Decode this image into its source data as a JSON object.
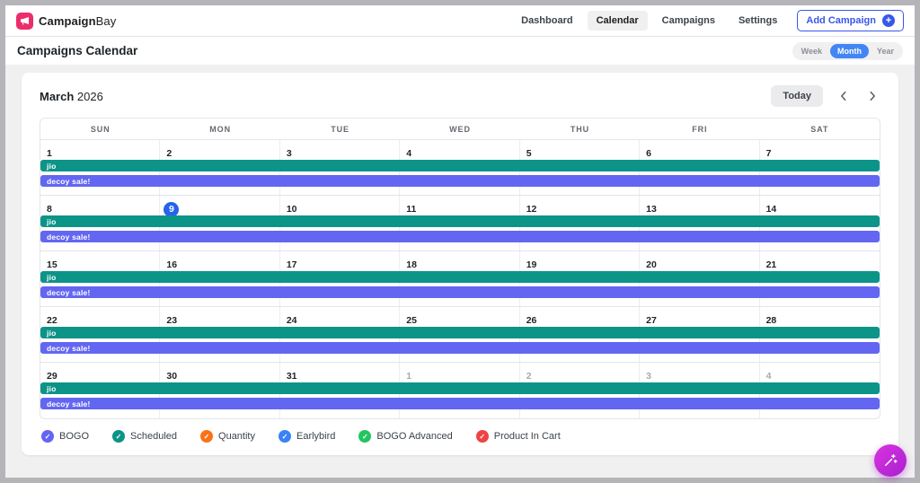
{
  "navbar": {
    "logo_bold": "Campaign",
    "logo_light": "Bay",
    "items": [
      {
        "label": "Dashboard",
        "active": false
      },
      {
        "label": "Calendar",
        "active": true
      },
      {
        "label": "Campaigns",
        "active": false
      },
      {
        "label": "Settings",
        "active": false
      }
    ],
    "add_campaign_label": "Add Campaign"
  },
  "page_header": {
    "title": "Campaigns Calendar",
    "views": [
      {
        "label": "Week",
        "active": false
      },
      {
        "label": "Month",
        "active": true
      },
      {
        "label": "Year",
        "active": false
      }
    ]
  },
  "calendar": {
    "month": "March",
    "year": "2026",
    "today_label": "Today",
    "today_date": "9",
    "day_headers": [
      "SUN",
      "MON",
      "TUE",
      "WED",
      "THU",
      "FRI",
      "SAT"
    ],
    "weeks": [
      {
        "days": [
          {
            "n": "1"
          },
          {
            "n": "2"
          },
          {
            "n": "3"
          },
          {
            "n": "4"
          },
          {
            "n": "5"
          },
          {
            "n": "6"
          },
          {
            "n": "7"
          }
        ],
        "events": [
          {
            "label": "jio",
            "color": "#0d9488"
          },
          {
            "label": "decoy sale!",
            "color": "#6366f1"
          }
        ]
      },
      {
        "days": [
          {
            "n": "8"
          },
          {
            "n": "9",
            "today": true
          },
          {
            "n": "10"
          },
          {
            "n": "11"
          },
          {
            "n": "12"
          },
          {
            "n": "13"
          },
          {
            "n": "14"
          }
        ],
        "events": [
          {
            "label": "jio",
            "color": "#0d9488"
          },
          {
            "label": "decoy sale!",
            "color": "#6366f1"
          }
        ]
      },
      {
        "days": [
          {
            "n": "15"
          },
          {
            "n": "16"
          },
          {
            "n": "17"
          },
          {
            "n": "18"
          },
          {
            "n": "19"
          },
          {
            "n": "20"
          },
          {
            "n": "21"
          }
        ],
        "events": [
          {
            "label": "jio",
            "color": "#0d9488"
          },
          {
            "label": "decoy sale!",
            "color": "#6366f1"
          }
        ]
      },
      {
        "days": [
          {
            "n": "22"
          },
          {
            "n": "23"
          },
          {
            "n": "24"
          },
          {
            "n": "25"
          },
          {
            "n": "26"
          },
          {
            "n": "27"
          },
          {
            "n": "28"
          }
        ],
        "events": [
          {
            "label": "jio",
            "color": "#0d9488"
          },
          {
            "label": "decoy sale!",
            "color": "#6366f1"
          }
        ]
      },
      {
        "days": [
          {
            "n": "29"
          },
          {
            "n": "30"
          },
          {
            "n": "31"
          },
          {
            "n": "1",
            "muted": true
          },
          {
            "n": "2",
            "muted": true
          },
          {
            "n": "3",
            "muted": true
          },
          {
            "n": "4",
            "muted": true
          }
        ],
        "events": [
          {
            "label": "jio",
            "color": "#0d9488"
          },
          {
            "label": "decoy sale!",
            "color": "#6366f1"
          }
        ]
      }
    ]
  },
  "legend": [
    {
      "label": "BOGO",
      "color": "#6366f1"
    },
    {
      "label": "Scheduled",
      "color": "#0d9488"
    },
    {
      "label": "Quantity",
      "color": "#f97316"
    },
    {
      "label": "Earlybird",
      "color": "#3b82f6"
    },
    {
      "label": "BOGO Advanced",
      "color": "#22c55e"
    },
    {
      "label": "Product In Cart",
      "color": "#ef4444"
    }
  ],
  "colors": {
    "accent_blue": "#3858e9",
    "today_blue": "#2563eb",
    "active_view_blue": "#4285f4",
    "brand_pink": "#ec2d6c",
    "fab_magenta": "#c228d6",
    "event_teal": "#0d9488",
    "event_indigo": "#6366f1"
  }
}
